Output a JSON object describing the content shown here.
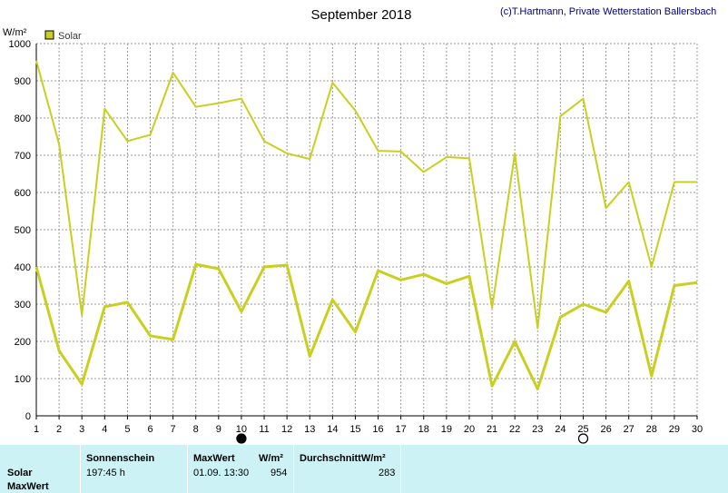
{
  "header": {
    "title": "September 2018",
    "credit": "(c)T.Hartmann, Private Wetterstation Ballersbach"
  },
  "chart_data": {
    "type": "line",
    "unit_label": "W/m²",
    "legend": {
      "label": "Solar",
      "placement": "top-left",
      "swatch_color": "#c8cf1e"
    },
    "ylim": [
      0,
      1000
    ],
    "y_ticks": [
      0,
      100,
      200,
      300,
      400,
      500,
      600,
      700,
      800,
      900,
      1000
    ],
    "x_ticks": [
      1,
      2,
      3,
      4,
      5,
      6,
      7,
      8,
      9,
      10,
      11,
      12,
      13,
      14,
      15,
      16,
      17,
      18,
      19,
      20,
      21,
      22,
      23,
      24,
      25,
      26,
      27,
      28,
      29,
      30
    ],
    "xlim": [
      1,
      30
    ],
    "grid": true,
    "moon_markers": [
      {
        "day": 10,
        "phase": "new-moon"
      },
      {
        "day": 25,
        "phase": "full-moon"
      }
    ],
    "x": [
      1,
      2,
      3,
      4,
      5,
      6,
      7,
      8,
      9,
      10,
      11,
      12,
      13,
      14,
      15,
      16,
      17,
      18,
      19,
      20,
      21,
      22,
      23,
      24,
      25,
      26,
      27,
      28,
      29,
      30
    ],
    "series": [
      {
        "role": "daily-max",
        "color": "#c8cf1e",
        "values": [
          954,
          730,
          270,
          825,
          738,
          755,
          922,
          830,
          840,
          852,
          738,
          705,
          690,
          895,
          820,
          712,
          710,
          655,
          695,
          692,
          290,
          705,
          235,
          805,
          852,
          558,
          628,
          400,
          628,
          628
        ]
      },
      {
        "role": "daily-average",
        "color": "#c8cf1e",
        "values": [
          400,
          175,
          85,
          293,
          305,
          215,
          205,
          407,
          395,
          280,
          400,
          405,
          160,
          312,
          225,
          390,
          365,
          380,
          355,
          375,
          80,
          200,
          72,
          265,
          300,
          278,
          362,
          107,
          350,
          358
        ]
      }
    ]
  },
  "stats": {
    "row1": "Solar",
    "row2": "MaxWert",
    "sunshine_header": "Sonnenschein",
    "sunshine_value": "197:45 h",
    "max_header": "MaxWert",
    "max_unit": "W/m²",
    "max_datetime": "01.09.  13:30",
    "max_value": "954",
    "avg_header": "DurchschnittW/m²",
    "avg_value": "283"
  }
}
